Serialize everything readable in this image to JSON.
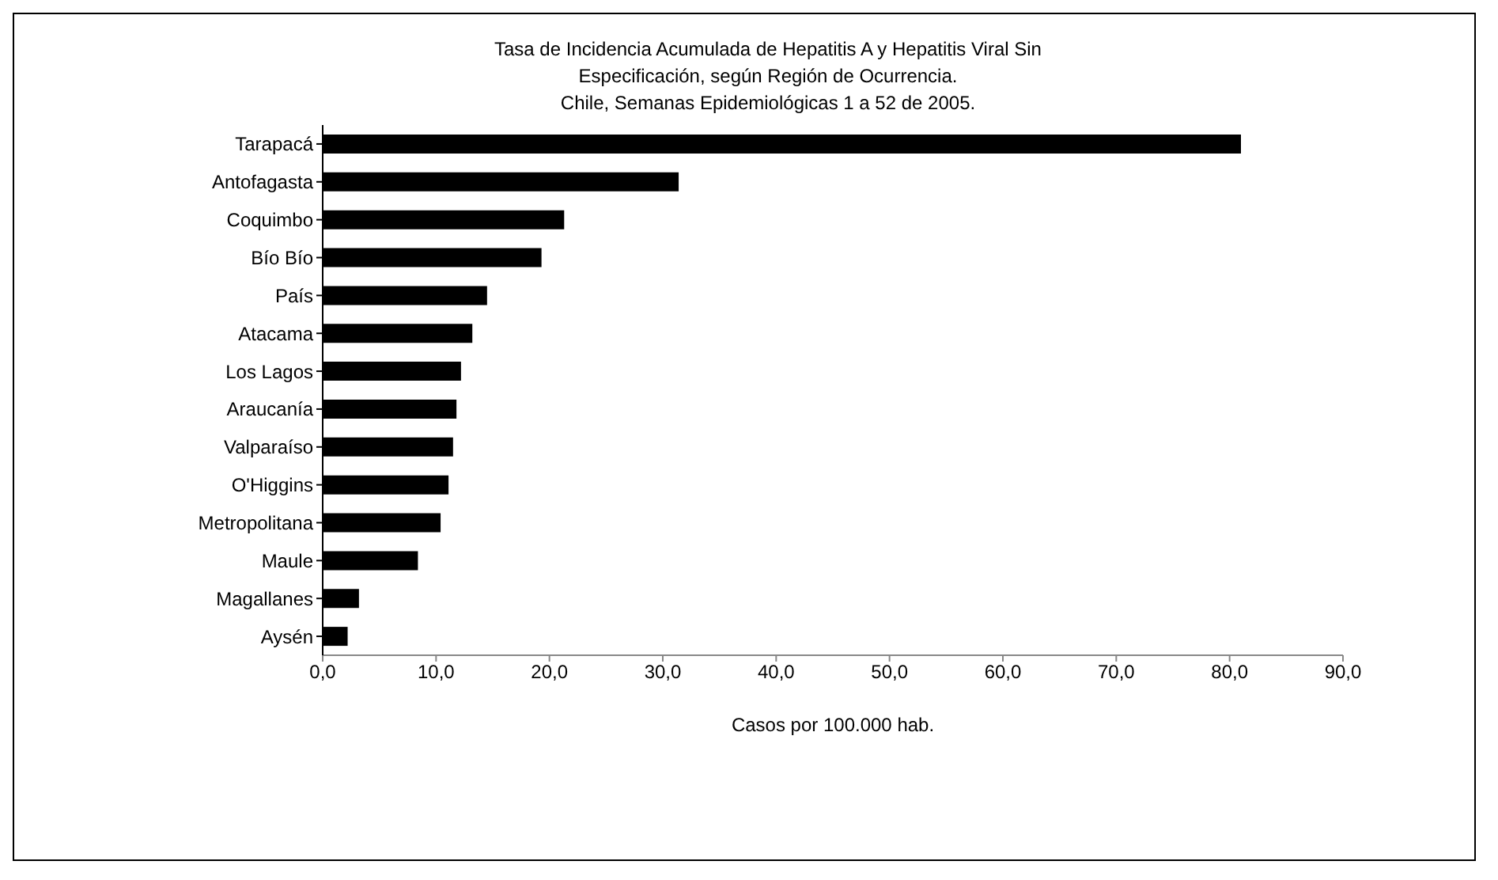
{
  "chart_data": {
    "type": "bar",
    "orientation": "horizontal",
    "title": "Tasa de Incidencia Acumulada de Hepatitis A y Hepatitis Viral Sin\nEspecificación, según Región de Ocurrencia.\nChile, Semanas Epidemiológicas 1 a 52 de 2005.",
    "xlabel": "Casos por 100.000 hab.",
    "categories": [
      "Tarapacá",
      "Antofagasta",
      "Coquimbo",
      "Bío Bío",
      "País",
      "Atacama",
      "Los Lagos",
      "Araucanía",
      "Valparaíso",
      "O'Higgins",
      "Metropolitana",
      "Maule",
      "Magallanes",
      "Aysén"
    ],
    "values": [
      81.0,
      31.4,
      21.3,
      19.3,
      14.5,
      13.2,
      12.2,
      11.8,
      11.5,
      11.1,
      10.4,
      8.4,
      3.2,
      2.2
    ],
    "color": "#000000",
    "xlim": [
      0,
      90
    ],
    "xticks": [
      {
        "value": 0,
        "label": "0,0"
      },
      {
        "value": 10,
        "label": "10,0"
      },
      {
        "value": 20,
        "label": "20,0"
      },
      {
        "value": 30,
        "label": "30,0"
      },
      {
        "value": 40,
        "label": "40,0"
      },
      {
        "value": 50,
        "label": "50,0"
      },
      {
        "value": 60,
        "label": "60,0"
      },
      {
        "value": 70,
        "label": "70,0"
      },
      {
        "value": 80,
        "label": "80,0"
      },
      {
        "value": 90,
        "label": "90,0"
      }
    ],
    "grid": false,
    "legend": false
  }
}
